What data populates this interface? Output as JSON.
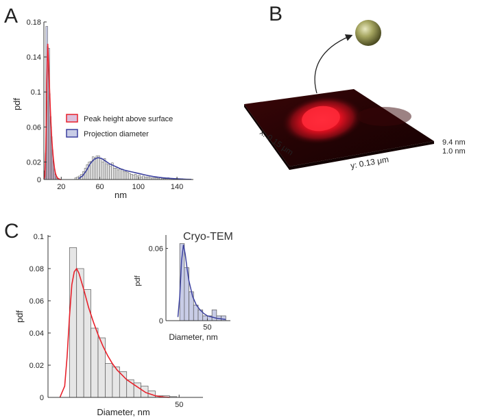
{
  "panel_labels": {
    "a": "A",
    "b": "B",
    "c": "C"
  },
  "colors": {
    "red": "#e8202a",
    "blue": "#3a3f9e",
    "pink_fill": "#dcc0dc",
    "blue_fill": "#c8cce6",
    "gray_fill": "#e6e6e6",
    "bar_edge": "#555555"
  },
  "panel_b": {
    "x_label": "x: 0.15 μm",
    "y_label": "y: 0.13 μm",
    "z_max": "9.4 nm",
    "z_min": "1.0 nm"
  },
  "chart_data": [
    {
      "panel": "A",
      "type": "bar",
      "xlabel": "nm",
      "ylabel": "pdf",
      "xlim": [
        2,
        157
      ],
      "ylim": [
        0,
        0.18
      ],
      "xticks": [
        "20",
        "60",
        "100",
        "140"
      ],
      "yticks": [
        "0",
        "0.02",
        "0.06",
        "0.1",
        "0.14",
        "0.18"
      ],
      "legend_position": "center-right",
      "series": [
        {
          "name": "Peak height above surface",
          "bin_width": 1,
          "x": [
            3,
            4,
            5,
            6,
            7,
            8,
            9,
            10,
            11,
            12,
            13,
            14,
            15,
            16
          ],
          "values": [
            0.01,
            0.03,
            0.09,
            0.152,
            0.126,
            0.098,
            0.072,
            0.049,
            0.034,
            0.021,
            0.012,
            0.006,
            0.003,
            0.001
          ],
          "fit_x": [
            2,
            3,
            4,
            5,
            6,
            7,
            8,
            9,
            10,
            11,
            12,
            13,
            14,
            15,
            16,
            17,
            18,
            19,
            20
          ],
          "fit_y": [
            0,
            0.004,
            0.035,
            0.11,
            0.155,
            0.13,
            0.1,
            0.072,
            0.05,
            0.034,
            0.022,
            0.013,
            0.007,
            0.004,
            0.002,
            0.001,
            0.0005,
            0,
            0
          ]
        },
        {
          "name": "Projection diameter",
          "bin_width": 2,
          "x": [
            5,
            7,
            9,
            11,
            13,
            15,
            17,
            35,
            37,
            39,
            41,
            43,
            45,
            47,
            49,
            51,
            53,
            55,
            57,
            59,
            61,
            63,
            65,
            67,
            69,
            71,
            73,
            75,
            77,
            79,
            81,
            83,
            85,
            87,
            89,
            91,
            93,
            95,
            97,
            99,
            101,
            103,
            105,
            107,
            109,
            111,
            113,
            115,
            117,
            119,
            121,
            123,
            125,
            127,
            129,
            131,
            133,
            135,
            137,
            139,
            141,
            143,
            145,
            147,
            149
          ],
          "values": [
            0.175,
            0.15,
            0.06,
            0.02,
            0.004,
            0.002,
            0.001,
            0.002,
            0.003,
            0.004,
            0.006,
            0.009,
            0.013,
            0.017,
            0.02,
            0.021,
            0.026,
            0.025,
            0.027,
            0.027,
            0.024,
            0.02,
            0.024,
            0.018,
            0.017,
            0.015,
            0.019,
            0.013,
            0.013,
            0.011,
            0.012,
            0.012,
            0.009,
            0.009,
            0.008,
            0.007,
            0.006,
            0.005,
            0.006,
            0.004,
            0.005,
            0.003,
            0.004,
            0.003,
            0.003,
            0.003,
            0.002,
            0.002,
            0.002,
            0.002,
            0.001,
            0.002,
            0.001,
            0.001,
            0.001,
            0.002,
            0.001,
            0.001,
            0.001,
            0.001,
            0.0005,
            0.0005,
            0.001,
            0.0005,
            0.0005
          ],
          "fit_x": [
            38,
            42,
            46,
            50,
            54,
            58,
            62,
            66,
            70,
            74,
            78,
            82,
            86,
            90,
            94,
            98,
            102,
            106,
            110,
            115,
            120,
            125,
            130,
            135,
            140,
            145,
            150,
            155
          ],
          "fit_y": [
            0.001,
            0.004,
            0.01,
            0.018,
            0.023,
            0.025,
            0.024,
            0.021,
            0.018,
            0.016,
            0.014,
            0.012,
            0.0105,
            0.0095,
            0.0085,
            0.0075,
            0.0065,
            0.0055,
            0.0045,
            0.0035,
            0.0027,
            0.002,
            0.0015,
            0.0011,
            0.0008,
            0.0005,
            0.0003,
            0.0002
          ]
        }
      ]
    },
    {
      "panel": "C",
      "type": "bar",
      "xlabel": "Diameter, nm",
      "ylabel": "pdf",
      "xlim": [
        -5,
        60
      ],
      "ylim": [
        0,
        0.1
      ],
      "xticks": [
        "50"
      ],
      "yticks": [
        "0",
        "0.02",
        "0.04",
        "0.06",
        "0.08",
        "0.1"
      ],
      "bin_width": 3,
      "bin_left": [
        4,
        7,
        10,
        13,
        16,
        19,
        22,
        25,
        28,
        31,
        34,
        37,
        40,
        43,
        46
      ],
      "values": [
        0.093,
        0.08,
        0.067,
        0.043,
        0.037,
        0.021,
        0.019,
        0.016,
        0.011,
        0.009,
        0.007,
        0.004,
        0.001,
        0.001,
        0.0005
      ],
      "fit_x": [
        0,
        2,
        3,
        4,
        5,
        6,
        7,
        8,
        10,
        12,
        14,
        16,
        18,
        20,
        22,
        24,
        26,
        28,
        30,
        32,
        34,
        36,
        38,
        40,
        42,
        44,
        46
      ],
      "fit_y": [
        0,
        0.007,
        0.025,
        0.05,
        0.07,
        0.078,
        0.08,
        0.077,
        0.067,
        0.056,
        0.047,
        0.039,
        0.032,
        0.026,
        0.021,
        0.017,
        0.014,
        0.011,
        0.009,
        0.007,
        0.005,
        0.003,
        0.002,
        0.001,
        0.0005,
        0.0002,
        0
      ],
      "inset": {
        "title": "Cryo-TEM",
        "xlabel": "Diameter, nm",
        "ylabel": "pdf",
        "xlim": [
          5,
          75
        ],
        "ylim": [
          0,
          0.07
        ],
        "xticks": [
          "50"
        ],
        "yticks": [
          "0",
          "0.06"
        ],
        "bin_width": 5,
        "bin_left": [
          20,
          25,
          30,
          35,
          40,
          45,
          50,
          55,
          60,
          65
        ],
        "values": [
          0.064,
          0.044,
          0.024,
          0.013,
          0.009,
          0.004,
          0.004,
          0.009,
          0.004,
          0.004
        ],
        "fit_x": [
          18,
          20,
          22,
          24,
          26,
          28,
          30,
          34,
          38,
          42,
          46,
          50,
          55,
          60,
          65,
          70
        ],
        "fit_y": [
          0.003,
          0.02,
          0.05,
          0.063,
          0.055,
          0.043,
          0.033,
          0.02,
          0.013,
          0.009,
          0.006,
          0.004,
          0.003,
          0.002,
          0.0015,
          0.001
        ]
      }
    }
  ]
}
